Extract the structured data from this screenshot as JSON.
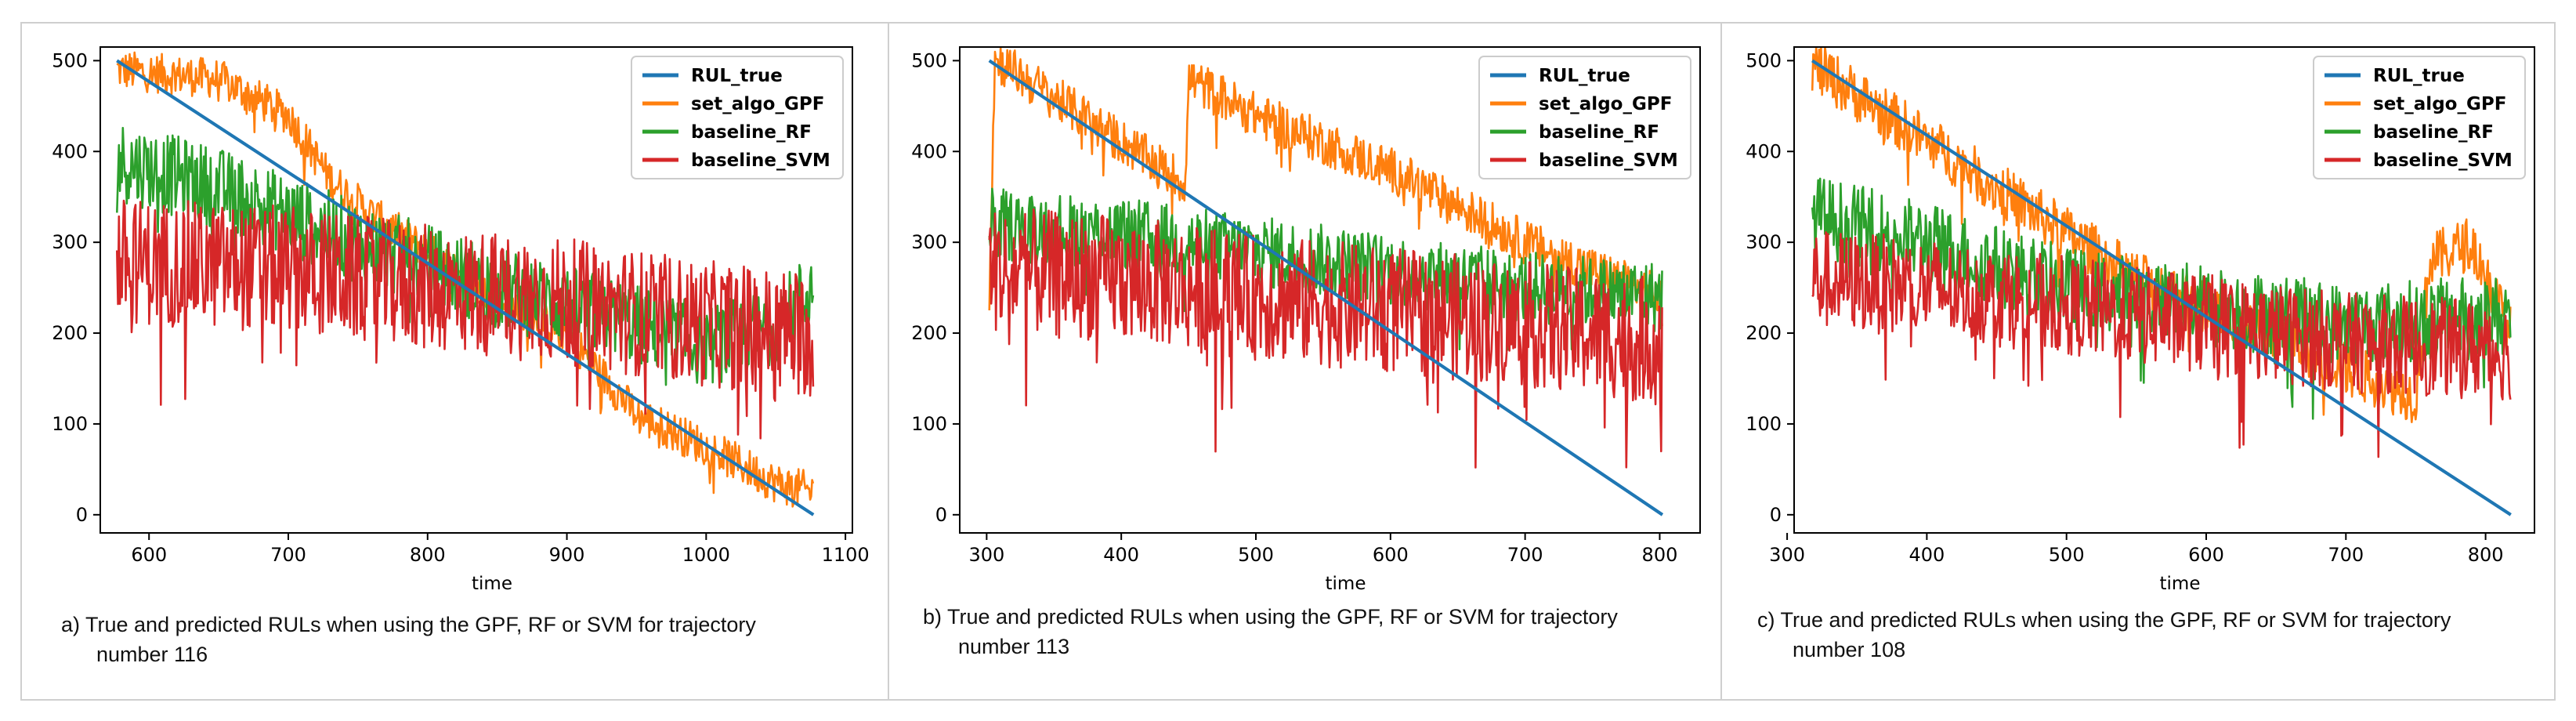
{
  "colors": {
    "RUL_true": "#1f77b4",
    "set_algo_GPF": "#ff7f0e",
    "baseline_RF": "#2ca02c",
    "baseline_SVM": "#d62728"
  },
  "chart_data": [
    {
      "type": "line",
      "xlabel": "time",
      "ylabel": "",
      "xlim": [
        565,
        1105
      ],
      "ylim": [
        -20,
        515
      ],
      "xticks": [
        600,
        700,
        800,
        900,
        1000,
        1100
      ],
      "yticks": [
        0,
        100,
        200,
        300,
        400,
        500
      ],
      "legend": [
        "RUL_true",
        "set_algo_GPF",
        "baseline_RF",
        "baseline_SVM"
      ],
      "legend_position": "top-right",
      "caption_l1": "a)  True and predicted RULs when using the GPF, RF or SVM for trajectory",
      "caption_l2": "number 116",
      "series": [
        {
          "name": "RUL_true",
          "x": [
            577,
            1077
          ],
          "y": [
            500,
            0
          ]
        },
        {
          "name": "set_algo_GPF",
          "x": [
            577,
            650,
            700,
            730,
            760,
            800,
            850,
            900,
            950,
            1000,
            1050,
            1077
          ],
          "y": [
            490,
            480,
            440,
            370,
            330,
            290,
            240,
            200,
            110,
            75,
            35,
            25
          ],
          "amp": 22
        },
        {
          "name": "baseline_RF",
          "x": [
            577,
            650,
            750,
            850,
            950,
            1000,
            1050,
            1077
          ],
          "y": [
            390,
            360,
            300,
            250,
            210,
            185,
            210,
            250
          ],
          "amp": 45
        },
        {
          "name": "baseline_SVM",
          "x": [
            577,
            700,
            800,
            900,
            1000,
            1077
          ],
          "y": [
            280,
            270,
            250,
            235,
            210,
            200
          ],
          "amp": 70
        }
      ]
    },
    {
      "type": "line",
      "xlabel": "time",
      "ylabel": "",
      "xlim": [
        280,
        830
      ],
      "ylim": [
        -20,
        515
      ],
      "xticks": [
        300,
        400,
        500,
        600,
        700,
        800
      ],
      "yticks": [
        0,
        100,
        200,
        300,
        400,
        500
      ],
      "legend": [
        "RUL_true",
        "set_algo_GPF",
        "baseline_RF",
        "baseline_SVM"
      ],
      "legend_position": "top-right",
      "caption_l1": "b)  True and predicted RULs when using the GPF, RF or SVM for trajectory",
      "caption_l2": "number 113",
      "series": [
        {
          "name": "RUL_true",
          "x": [
            302,
            802
          ],
          "y": [
            500,
            0
          ]
        },
        {
          "name": "set_algo_GPF",
          "x": [
            302,
            306,
            310,
            448,
            450,
            500,
            600,
            700,
            800,
            802
          ],
          "y": [
            240,
            500,
            498,
            365,
            480,
            440,
            380,
            300,
            240,
            220
          ],
          "amp": 25
        },
        {
          "name": "baseline_RF",
          "x": [
            302,
            400,
            500,
            600,
            700,
            802
          ],
          "y": [
            320,
            310,
            290,
            270,
            250,
            240
          ],
          "amp": 40
        },
        {
          "name": "baseline_SVM",
          "x": [
            302,
            400,
            500,
            600,
            700,
            802
          ],
          "y": [
            270,
            260,
            240,
            225,
            210,
            190
          ],
          "amp": 70
        }
      ]
    },
    {
      "type": "line",
      "xlabel": "time",
      "ylabel": "",
      "xlim": [
        305,
        835
      ],
      "ylim": [
        -20,
        515
      ],
      "xticks": [
        300,
        400,
        500,
        600,
        700,
        800
      ],
      "yticks": [
        0,
        100,
        200,
        300,
        400,
        500
      ],
      "legend": [
        "RUL_true",
        "set_algo_GPF",
        "baseline_RF",
        "baseline_SVM"
      ],
      "legend_position": "top-right",
      "caption_l1": "c)  True and predicted RULs when using the GPF, RF or SVM for trajectory",
      "caption_l2": "number 108",
      "series": [
        {
          "name": "RUL_true",
          "x": [
            318,
            818
          ],
          "y": [
            500,
            0
          ]
        },
        {
          "name": "set_algo_GPF",
          "x": [
            318,
            450,
            550,
            650,
            700,
            750,
            760,
            790,
            818
          ],
          "y": [
            495,
            360,
            260,
            200,
            160,
            130,
            280,
            300,
            200
          ],
          "amp": 30
        },
        {
          "name": "baseline_RF",
          "x": [
            318,
            400,
            500,
            600,
            700,
            818
          ],
          "y": [
            330,
            300,
            250,
            230,
            210,
            220
          ],
          "amp": 45
        },
        {
          "name": "baseline_SVM",
          "x": [
            318,
            400,
            500,
            600,
            700,
            818
          ],
          "y": [
            260,
            250,
            230,
            210,
            190,
            180
          ],
          "amp": 55
        }
      ]
    }
  ]
}
